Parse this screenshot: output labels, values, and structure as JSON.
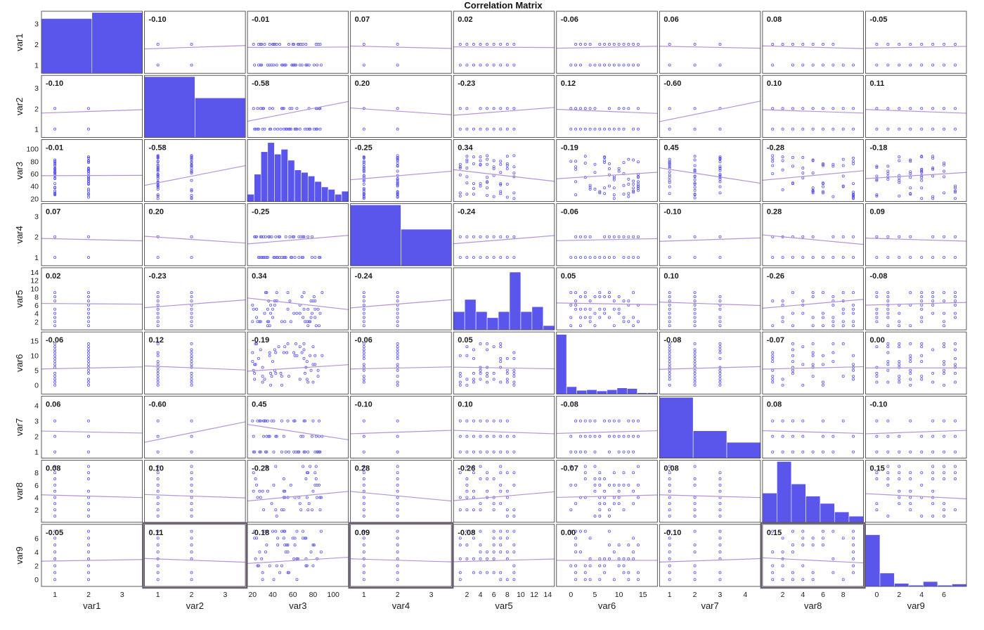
{
  "chart_data": {
    "type": "scatter-matrix",
    "title": "Correlation Matrix",
    "variables": [
      "var1",
      "var2",
      "var3",
      "var4",
      "var5",
      "var6",
      "var7",
      "var8",
      "var9"
    ],
    "axes": {
      "var1": {
        "lim": [
          0.6,
          3.6
        ],
        "ticks": [
          1,
          2,
          3
        ],
        "tick_labels": [
          "1",
          "2",
          "3"
        ]
      },
      "var2": {
        "lim": [
          0.6,
          3.6
        ],
        "ticks": [
          1,
          2,
          3
        ],
        "tick_labels": [
          "1",
          "2",
          "3"
        ]
      },
      "var3": {
        "lim": [
          15,
          115
        ],
        "ticks": [
          20,
          40,
          60,
          80,
          100
        ],
        "tick_labels": [
          "20",
          "40",
          "60",
          "80",
          "100"
        ]
      },
      "var4": {
        "lim": [
          0.6,
          3.6
        ],
        "ticks": [
          1,
          2,
          3
        ],
        "tick_labels": [
          "1",
          "2",
          "3"
        ]
      },
      "var5": {
        "lim": [
          0,
          15
        ],
        "ticks": [
          2,
          4,
          6,
          8,
          10,
          12,
          14
        ],
        "tick_labels": [
          "2",
          "4",
          "6",
          "8",
          "10",
          "12",
          "14"
        ]
      },
      "var6": {
        "lim": [
          -3,
          18
        ],
        "ticks": [
          0,
          5,
          10,
          15
        ],
        "tick_labels": [
          "0",
          "5",
          "10",
          "15"
        ]
      },
      "var7": {
        "lim": [
          0.6,
          4.6
        ],
        "ticks": [
          1,
          2,
          3,
          4
        ],
        "tick_labels": [
          "1",
          "2",
          "3",
          "4"
        ]
      },
      "var8": {
        "lim": [
          0,
          10
        ],
        "ticks": [
          0,
          2,
          4,
          6,
          8
        ],
        "tick_labels": [
          "0",
          "2",
          "4",
          "6",
          "8"
        ]
      },
      "var9": {
        "lim": [
          -1,
          8
        ],
        "ticks": [
          0,
          2,
          4,
          6
        ],
        "tick_labels": [
          "0",
          "2",
          "4",
          "6"
        ]
      }
    },
    "y_axes": {
      "var1": {
        "ticks": [
          1,
          2,
          3
        ],
        "tick_labels": [
          "1",
          "2",
          "3"
        ]
      },
      "var2": {
        "ticks": [
          1,
          2,
          3
        ],
        "tick_labels": [
          "1",
          "2",
          "3"
        ]
      },
      "var3": {
        "ticks": [
          20,
          40,
          60,
          80,
          100
        ],
        "tick_labels": [
          "20",
          "40",
          "60",
          "80",
          "100"
        ]
      },
      "var4": {
        "ticks": [
          1,
          2,
          3
        ],
        "tick_labels": [
          "1",
          "2",
          "3"
        ]
      },
      "var5": {
        "ticks": [
          2,
          4,
          6,
          8,
          10,
          12,
          14
        ],
        "tick_labels": [
          "2",
          "4",
          "6",
          "8",
          "10",
          "12",
          "14"
        ]
      },
      "var6": {
        "ticks": [
          0,
          5,
          10,
          15
        ],
        "tick_labels": [
          "0",
          "5",
          "10",
          "15"
        ]
      },
      "var7": {
        "ticks": [
          1,
          2,
          3,
          4
        ],
        "tick_labels": [
          "1",
          "2",
          "3",
          "4"
        ]
      },
      "var8": {
        "ticks": [
          0,
          2,
          4,
          6,
          8
        ],
        "tick_labels": [
          "0",
          "2",
          "4",
          "6",
          "8"
        ]
      },
      "var9": {
        "ticks": [
          0,
          2,
          4,
          6
        ],
        "tick_labels": [
          "0",
          "2",
          "4",
          "6"
        ]
      }
    },
    "correlation_labels": [
      [
        "",
        "-0.10",
        "-0.01",
        "0.07",
        "0.02",
        "-0.06",
        "0.06",
        "0.08",
        "-0.05"
      ],
      [
        "-0.10",
        "",
        "-0.58",
        "0.20",
        "-0.23",
        "0.12",
        "-0.60",
        "0.10",
        "0.11"
      ],
      [
        "-0.01",
        "-0.58",
        "",
        "-0.25",
        "0.34",
        "-0.19",
        "0.45",
        "-0.28",
        "-0.18"
      ],
      [
        "0.07",
        "0.20",
        "-0.25",
        "",
        "-0.24",
        "-0.06",
        "-0.10",
        "0.28",
        "0.09"
      ],
      [
        "0.02",
        "-0.23",
        "0.34",
        "-0.24",
        "",
        "0.05",
        "0.10",
        "-0.26",
        "-0.08"
      ],
      [
        "-0.06",
        "0.12",
        "-0.19",
        "-0.06",
        "0.05",
        "",
        "-0.08",
        "-0.07",
        "0.00"
      ],
      [
        "0.06",
        "-0.60",
        "0.45",
        "-0.10",
        "0.10",
        "-0.08",
        "",
        "0.08",
        "-0.10"
      ],
      [
        "0.08",
        "0.10",
        "-0.28",
        "0.28",
        "-0.26",
        "-0.07",
        "0.08",
        "",
        "0.15"
      ],
      [
        "-0.05",
        "0.11",
        "-0.18",
        "0.09",
        "-0.08",
        "0.00",
        "-0.10",
        "0.15",
        ""
      ]
    ],
    "correlations": [
      [
        1.0,
        -0.1,
        -0.01,
        0.07,
        0.02,
        -0.06,
        0.06,
        0.08,
        -0.05
      ],
      [
        -0.1,
        1.0,
        -0.58,
        0.2,
        -0.23,
        0.12,
        -0.6,
        0.1,
        0.11
      ],
      [
        -0.01,
        -0.58,
        1.0,
        -0.25,
        0.34,
        -0.19,
        0.45,
        -0.28,
        -0.18
      ],
      [
        0.07,
        0.2,
        -0.25,
        1.0,
        -0.24,
        -0.06,
        -0.1,
        0.28,
        0.09
      ],
      [
        0.02,
        -0.23,
        0.34,
        -0.24,
        1.0,
        0.05,
        0.1,
        -0.26,
        -0.08
      ],
      [
        -0.06,
        0.12,
        -0.19,
        -0.06,
        0.05,
        1.0,
        -0.08,
        -0.07,
        0.0
      ],
      [
        0.06,
        -0.6,
        0.45,
        -0.1,
        0.1,
        -0.08,
        1.0,
        0.08,
        -0.1
      ],
      [
        0.08,
        0.1,
        -0.28,
        0.28,
        -0.26,
        -0.07,
        0.08,
        1.0,
        0.15
      ],
      [
        -0.05,
        0.11,
        -0.18,
        0.09,
        -0.08,
        0.0,
        -0.1,
        0.15,
        1.0
      ]
    ],
    "histograms": {
      "var1": [
        0.9,
        1.0
      ],
      "var2": [
        1.0,
        0.65
      ],
      "var3": [
        0.12,
        0.45,
        0.82,
        0.97,
        0.78,
        0.86,
        0.68,
        0.52,
        0.48,
        0.42,
        0.33,
        0.24,
        0.2,
        0.12,
        0.17
      ],
      "var4": [
        1.0,
        0.6
      ],
      "var5": [
        0.3,
        0.5,
        0.3,
        0.2,
        0.3,
        0.95,
        0.3,
        0.38,
        0.07
      ],
      "var6": [
        0.98,
        0.12,
        0.06,
        0.07,
        0.05,
        0.07,
        0.1,
        0.09,
        0.02,
        0.02
      ],
      "var7": [
        1.0,
        0.45,
        0.26
      ],
      "var8": [
        0.48,
        1.0,
        0.63,
        0.43,
        0.31,
        0.17,
        0.1
      ],
      "var9": [
        0.85,
        0.22,
        0.05,
        0.02,
        0.08,
        0.02,
        0.04
      ]
    },
    "xlabel": "",
    "ylabel": "",
    "grid": false,
    "legend": "none"
  },
  "colors": {
    "accent": "#5a56ec",
    "fit_line": "#b693d6",
    "frame": "#333333",
    "highlight_frame": "#6a5d74",
    "text": "#1a1a1a"
  }
}
